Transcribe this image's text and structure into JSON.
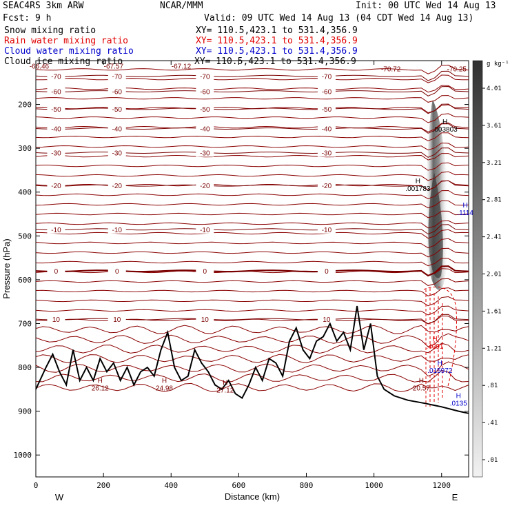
{
  "header": {
    "model": "SEAC4RS   3km ARW",
    "center": "NCAR/MMM",
    "init": "Init: 00 UTC Wed 14 Aug 13",
    "fcst": "Fcst:    9 h",
    "valid": "Valid: 09 UTC Wed 14 Aug 13 (04 CDT Wed 14 Aug 13)"
  },
  "fields": [
    {
      "name": "Snow mixing ratio",
      "xy": "XY= 110.5,423.1 to 531.4,356.9",
      "color": "#000000"
    },
    {
      "name": "Rain water mixing ratio",
      "xy": "XY= 110.5,423.1 to 531.4,356.9",
      "color": "#e00000"
    },
    {
      "name": "Cloud water mixing ratio",
      "xy": "XY= 110.5,423.1 to 531.4,356.9",
      "color": "#0000cc"
    },
    {
      "name": "Cloud ice mixing ratio",
      "xy": "XY= 110.5,423.1 to 531.4,356.9",
      "color": "#000000"
    }
  ],
  "chart_data": {
    "type": "cross-section",
    "xlabel": "Distance (km)",
    "ylabel": "Pressure (hPa)",
    "xlim": [
      0,
      1280
    ],
    "ylim": [
      1050,
      100
    ],
    "x_ticks": [
      0,
      200,
      400,
      600,
      800,
      1000,
      1200
    ],
    "y_ticks": [
      200,
      300,
      400,
      500,
      600,
      700,
      800,
      900,
      1000
    ],
    "direction_left": "W",
    "direction_right": "E",
    "colorbar": {
      "unit": "g kg⁻¹",
      "labels": [
        "4.01",
        "3.61",
        "3.21",
        "2.81",
        "2.41",
        "2.01",
        "1.61",
        "1.21",
        ".81",
        ".41",
        ".01"
      ],
      "values": [
        4.01,
        3.61,
        3.21,
        2.81,
        2.41,
        2.01,
        1.61,
        1.21,
        0.81,
        0.41,
        0.01
      ]
    },
    "temperature_contours": [
      {
        "label": "-70",
        "p": 135
      },
      {
        "label": "-60",
        "p": 170
      },
      {
        "label": "-50",
        "p": 210
      },
      {
        "label": "-40",
        "p": 255
      },
      {
        "label": "-30",
        "p": 310
      },
      {
        "label": "-20",
        "p": 385
      },
      {
        "label": "-10",
        "p": 485
      },
      {
        "label": "0",
        "p": 580
      },
      {
        "label": "10",
        "p": 690
      }
    ],
    "extra_contour_labels": [
      {
        "label": "-66.46",
        "x": 10,
        "p": 112
      },
      {
        "label": "-67.57",
        "x": 230,
        "p": 112
      },
      {
        "label": "-67.12",
        "x": 430,
        "p": 112
      },
      {
        "label": "-70.72",
        "x": 1050,
        "p": 118
      },
      {
        "label": "-70.25",
        "x": 1245,
        "p": 118
      }
    ],
    "extrema_labels": [
      {
        "letter": "H",
        "value": "26.12",
        "x": 190,
        "p": 835,
        "color": "#7a0000"
      },
      {
        "letter": "H",
        "value": "24.98",
        "x": 380,
        "p": 835,
        "color": "#7a0000"
      },
      {
        "letter": "H",
        "value": "27.12",
        "x": 560,
        "p": 840,
        "color": "#7a0000"
      },
      {
        "letter": "H",
        "value": "20.57",
        "x": 1140,
        "p": 835,
        "color": "#7a0000"
      },
      {
        "letter": "H",
        "value": ".003803",
        "x": 1210,
        "p": 245,
        "color": "#000000"
      },
      {
        "letter": "H",
        "value": ".001783",
        "x": 1130,
        "p": 380,
        "color": "#000000"
      },
      {
        "letter": "H",
        "value": ".1114",
        "x": 1270,
        "p": 435,
        "color": "#0000cc"
      },
      {
        "letter": "H",
        "value": ".4091",
        "x": 1180,
        "p": 740,
        "color": "#e00000"
      },
      {
        "letter": "H",
        "value": ".015972",
        "x": 1195,
        "p": 795,
        "color": "#0000cc"
      },
      {
        "letter": "H",
        "value": ".0135",
        "x": 1250,
        "p": 870,
        "color": "#0000cc"
      }
    ],
    "terrain": {
      "x": [
        0,
        30,
        50,
        70,
        90,
        110,
        130,
        150,
        170,
        190,
        210,
        230,
        250,
        270,
        290,
        310,
        330,
        350,
        370,
        390,
        410,
        430,
        450,
        470,
        490,
        510,
        530,
        550,
        570,
        590,
        610,
        630,
        650,
        670,
        690,
        710,
        730,
        750,
        770,
        790,
        810,
        830,
        850,
        870,
        890,
        910,
        930,
        950,
        970,
        990,
        1010,
        1030,
        1060,
        1100,
        1150,
        1200,
        1250,
        1280
      ],
      "p": [
        850,
        800,
        770,
        810,
        840,
        760,
        830,
        800,
        830,
        780,
        810,
        790,
        830,
        800,
        840,
        810,
        800,
        820,
        760,
        720,
        800,
        830,
        820,
        760,
        790,
        810,
        840,
        850,
        830,
        860,
        870,
        840,
        800,
        830,
        780,
        790,
        820,
        740,
        710,
        760,
        780,
        740,
        730,
        700,
        740,
        720,
        760,
        660,
        760,
        700,
        820,
        850,
        865,
        875,
        882,
        890,
        900,
        905
      ]
    }
  }
}
